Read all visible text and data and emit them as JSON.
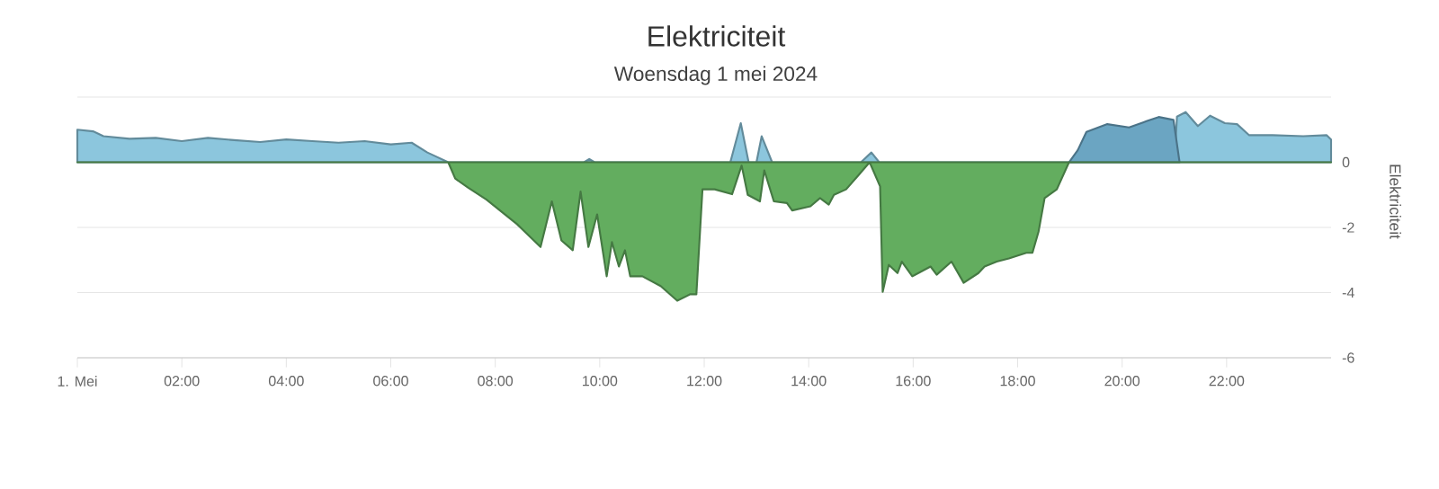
{
  "chart_data": {
    "type": "area",
    "title": "Elektriciteit",
    "subtitle": "Woensdag 1 mei 2024",
    "ylabel": "Elektriciteit",
    "xlim": [
      "2024-05-01T00:00",
      "2024-05-02T00:00"
    ],
    "xticks": [
      {
        "value": "2024-05-01",
        "label": "1. Mei"
      },
      {
        "value": "2024-05-01T02:00",
        "label": "02:00"
      },
      {
        "value": "2024-05-01T04:00",
        "label": "04:00"
      },
      {
        "value": "2024-05-01T06:00",
        "label": "06:00"
      },
      {
        "value": "2024-05-01T08:00",
        "label": "08:00"
      },
      {
        "value": "2024-05-01T10:00",
        "label": "10:00"
      },
      {
        "value": "2024-05-01T12:00",
        "label": "12:00"
      },
      {
        "value": "2024-05-01T14:00",
        "label": "14:00"
      },
      {
        "value": "2024-05-01T16:00",
        "label": "16:00"
      },
      {
        "value": "2024-05-01T18:00",
        "label": "18:00"
      },
      {
        "value": "2024-05-01T20:00",
        "label": "20:00"
      },
      {
        "value": "2024-05-01T22:00",
        "label": "22:00"
      }
    ],
    "ylim": [
      -6,
      2
    ],
    "yticks": [
      -6,
      -4,
      -2,
      0,
      {
        "value": 2,
        "label": null
      }
    ],
    "grid": "y",
    "series": [
      {
        "color": "#8cc6dd",
        "x": [
          "2024-05-01T00:00",
          "2024-05-01T00:18",
          "2024-05-01T00:30",
          "2024-05-01T01:00",
          "2024-05-01T01:30",
          "2024-05-01T02:00",
          "2024-05-01T02:30",
          "2024-05-01T03:00",
          "2024-05-01T03:30",
          "2024-05-01T04:00",
          "2024-05-01T04:30",
          "2024-05-01T05:00",
          "2024-05-01T05:30",
          "2024-05-01T06:00",
          "2024-05-01T06:24",
          "2024-05-01T06:42",
          "2024-05-01T07:06",
          "2024-05-01T09:42",
          "2024-05-01T09:48",
          "2024-05-01T09:54",
          "2024-05-01T12:30",
          "2024-05-01T12:42",
          "2024-05-01T12:51",
          "2024-05-01T13:00",
          "2024-05-01T13:06",
          "2024-05-01T13:18",
          "2024-05-01T15:00",
          "2024-05-01T15:12",
          "2024-05-01T15:21",
          "2024-05-01T21:00",
          "2024-05-01T21:03",
          "2024-05-01T21:13",
          "2024-05-01T21:27",
          "2024-05-01T21:41",
          "2024-05-01T21:58",
          "2024-05-01T22:12",
          "2024-05-01T22:26",
          "2024-05-01T22:53",
          "2024-05-01T23:28",
          "2024-05-01T23:55",
          "2024-05-02T00:00"
        ],
        "values": [
          1.0,
          0.95,
          0.8,
          0.72,
          0.75,
          0.65,
          0.75,
          0.68,
          0.62,
          0.7,
          0.65,
          0.6,
          0.65,
          0.55,
          0.6,
          0.3,
          0,
          0,
          0.1,
          0,
          0,
          1.2,
          0,
          0,
          0.8,
          0,
          0,
          0.3,
          0,
          0,
          1.4,
          1.54,
          1.11,
          1.43,
          1.2,
          1.17,
          0.83,
          0.83,
          0.8,
          0.83,
          0.7
        ]
      },
      {
        "color": "#6ba5c2",
        "x": [
          "2024-05-01T18:59",
          "2024-05-01T19:09",
          "2024-05-01T19:19",
          "2024-05-01T19:43",
          "2024-05-01T20:08",
          "2024-05-01T20:28",
          "2024-05-01T20:42",
          "2024-05-01T20:59",
          "2024-05-01T21:06"
        ],
        "values": [
          0,
          0.37,
          0.93,
          1.17,
          1.07,
          1.26,
          1.39,
          1.3,
          0
        ]
      },
      {
        "color": "#63ad5f",
        "x": [
          "2024-05-01T00:00",
          "2024-05-01T07:06",
          "2024-05-01T07:14",
          "2024-05-01T07:29",
          "2024-05-01T07:50",
          "2024-05-01T08:25",
          "2024-05-01T08:52",
          "2024-05-01T09:05",
          "2024-05-01T09:16",
          "2024-05-01T09:29",
          "2024-05-01T09:38",
          "2024-05-01T09:47",
          "2024-05-01T09:57",
          "2024-05-01T10:08",
          "2024-05-01T10:14",
          "2024-05-01T10:22",
          "2024-05-01T10:29",
          "2024-05-01T10:35",
          "2024-05-01T10:49",
          "2024-05-01T11:10",
          "2024-05-01T11:29",
          "2024-05-01T11:44",
          "2024-05-01T11:51",
          "2024-05-01T11:58",
          "2024-05-01T12:12",
          "2024-05-01T12:32",
          "2024-05-01T12:43",
          "2024-05-01T12:50",
          "2024-05-01T13:04",
          "2024-05-01T13:09",
          "2024-05-01T13:20",
          "2024-05-01T13:35",
          "2024-05-01T13:41",
          "2024-05-01T14:02",
          "2024-05-01T14:13",
          "2024-05-01T14:23",
          "2024-05-01T14:29",
          "2024-05-01T14:43",
          "2024-05-01T14:58",
          "2024-05-01T15:10",
          "2024-05-01T15:22",
          "2024-05-01T15:25",
          "2024-05-01T15:32",
          "2024-05-01T15:42",
          "2024-05-01T15:47",
          "2024-05-01T15:59",
          "2024-05-01T16:20",
          "2024-05-01T16:27",
          "2024-05-01T16:44",
          "2024-05-01T16:58",
          "2024-05-01T17:15",
          "2024-05-01T17:22",
          "2024-05-01T17:36",
          "2024-05-01T17:50",
          "2024-05-01T18:10",
          "2024-05-01T18:17",
          "2024-05-01T18:24",
          "2024-05-01T18:31",
          "2024-05-01T18:45",
          "2024-05-01T18:59",
          "2024-05-02T00:00"
        ],
        "values": [
          0,
          0,
          -0.5,
          -0.78,
          -1.15,
          -1.9,
          -2.6,
          -1.2,
          -2.4,
          -2.7,
          -0.9,
          -2.6,
          -1.6,
          -3.5,
          -2.45,
          -3.2,
          -2.7,
          -3.5,
          -3.5,
          -3.8,
          -4.25,
          -4.05,
          -4.05,
          -0.83,
          -0.83,
          -0.98,
          -0.1,
          -1.0,
          -1.2,
          -0.25,
          -1.2,
          -1.25,
          -1.48,
          -1.35,
          -1.1,
          -1.3,
          -1.0,
          -0.83,
          -0.37,
          0,
          -0.74,
          -3.98,
          -3.15,
          -3.4,
          -3.05,
          -3.5,
          -3.2,
          -3.45,
          -3.05,
          -3.7,
          -3.4,
          -3.2,
          -3.05,
          -2.95,
          -2.78,
          -2.78,
          -2.13,
          -1.1,
          -0.83,
          0,
          0
        ]
      }
    ]
  }
}
